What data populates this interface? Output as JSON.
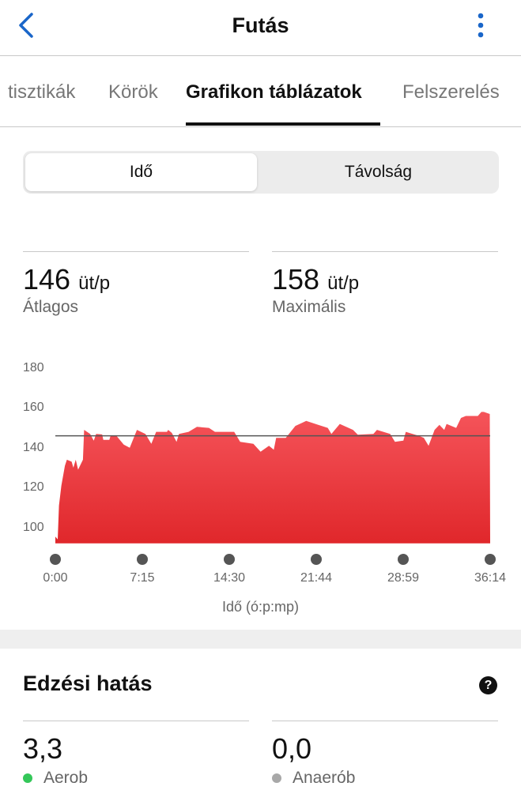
{
  "header": {
    "title": "Futás",
    "back_icon": "chevron-left-icon",
    "more_icon": "more-vertical-icon",
    "accent": "#1a66c9"
  },
  "tabs": [
    {
      "label": "tisztikák"
    },
    {
      "label": "Körök"
    },
    {
      "label": "Grafikon táblázatok",
      "active": true
    },
    {
      "label": "Felszerelés"
    }
  ],
  "segment": {
    "options": [
      "Idő",
      "Távolság"
    ],
    "selected": "Idő"
  },
  "stats": [
    {
      "value": "146",
      "unit": "üt/p",
      "label": "Átlagos"
    },
    {
      "value": "158",
      "unit": "üt/p",
      "label": "Maximális"
    }
  ],
  "chart_data": {
    "type": "area",
    "xlabel": "Idő (ó:p:mp)",
    "x_ticks": [
      "0:00",
      "7:15",
      "14:30",
      "21:44",
      "28:59",
      "36:14"
    ],
    "y_ticks": [
      100,
      120,
      140,
      160,
      180
    ],
    "ylim": [
      92,
      180
    ],
    "xlim_minutes": [
      0,
      36.23
    ],
    "average_line": 146,
    "fill_color": "#e8333a",
    "points_minutes_bpm": [
      [
        0,
        95.4
      ],
      [
        0.2,
        94
      ],
      [
        0.3,
        111
      ],
      [
        0.5,
        121
      ],
      [
        0.8,
        131
      ],
      [
        0.96,
        134
      ],
      [
        1.36,
        133
      ],
      [
        1.5,
        130
      ],
      [
        1.7,
        134
      ],
      [
        1.9,
        129
      ],
      [
        2.3,
        134
      ],
      [
        2.4,
        149
      ],
      [
        2.9,
        147
      ],
      [
        3.2,
        143.6
      ],
      [
        3.4,
        147
      ],
      [
        3.9,
        146.7
      ],
      [
        4.0,
        144
      ],
      [
        4.5,
        144
      ],
      [
        4.6,
        146
      ],
      [
        5.1,
        146
      ],
      [
        5.7,
        141.6
      ],
      [
        6.2,
        140
      ],
      [
        6.8,
        149
      ],
      [
        7.5,
        147
      ],
      [
        8.0,
        142
      ],
      [
        8.4,
        148
      ],
      [
        9.3,
        148
      ],
      [
        9.4,
        149
      ],
      [
        9.7,
        147.5
      ],
      [
        10.1,
        143
      ],
      [
        10.3,
        147
      ],
      [
        11.1,
        148
      ],
      [
        11.8,
        150.5
      ],
      [
        12.8,
        150
      ],
      [
        13.3,
        148
      ],
      [
        14.9,
        148
      ],
      [
        15.4,
        143
      ],
      [
        16.5,
        142
      ],
      [
        17.1,
        138
      ],
      [
        17.8,
        141
      ],
      [
        18.2,
        139
      ],
      [
        18.4,
        145
      ],
      [
        19.2,
        145
      ],
      [
        20.0,
        151
      ],
      [
        20.9,
        153.5
      ],
      [
        21.9,
        151.5
      ],
      [
        22.7,
        150
      ],
      [
        23.0,
        147
      ],
      [
        23.7,
        152
      ],
      [
        24.8,
        149
      ],
      [
        25.2,
        146.6
      ],
      [
        26.5,
        147
      ],
      [
        26.8,
        149
      ],
      [
        27.9,
        147
      ],
      [
        28.3,
        143
      ],
      [
        29.0,
        143.6
      ],
      [
        29.2,
        148
      ],
      [
        30.3,
        146
      ],
      [
        30.7,
        145
      ],
      [
        31.1,
        141
      ],
      [
        31.6,
        149
      ],
      [
        32.0,
        151.5
      ],
      [
        32.4,
        149
      ],
      [
        32.6,
        152
      ],
      [
        33.4,
        150
      ],
      [
        33.8,
        155
      ],
      [
        34.2,
        156
      ],
      [
        35.2,
        156
      ],
      [
        35.5,
        158
      ],
      [
        35.7,
        158
      ],
      [
        36.2,
        157
      ]
    ]
  },
  "training_effect": {
    "title": "Edzési hatás",
    "help_icon": "help-circle-icon",
    "items": [
      {
        "value": "3,3",
        "label": "Aerob",
        "color": "#34c759"
      },
      {
        "value": "0,0",
        "label": "Anaerób",
        "color": "#a8a8a8"
      }
    ]
  }
}
